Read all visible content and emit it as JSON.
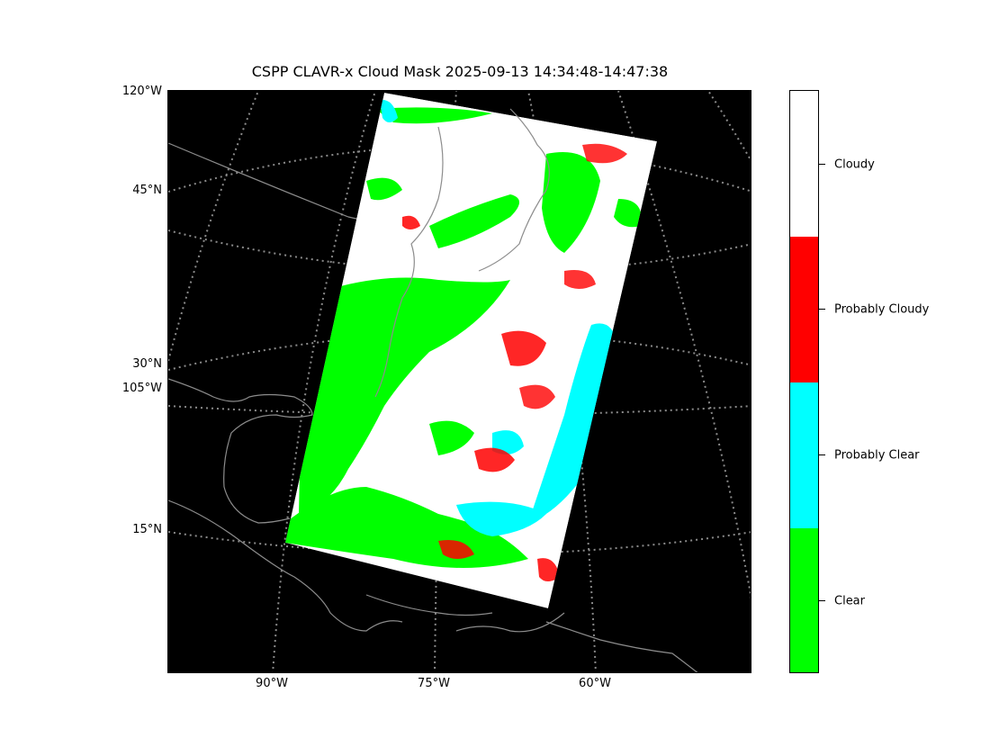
{
  "title": "CSPP CLAVR-x Cloud Mask 2025-09-13 14:34:48-14:47:38",
  "lat_labels": [
    "120°W",
    "45°N",
    "30°N",
    "105°W",
    "15°N"
  ],
  "lon_labels": [
    "90°W",
    "75°W",
    "60°W"
  ],
  "colorbar": {
    "classes": [
      {
        "label": "Cloudy",
        "color": "#ffffff"
      },
      {
        "label": "Probably Cloudy",
        "color": "#ff0000"
      },
      {
        "label": "Probably Clear",
        "color": "#00ffff"
      },
      {
        "label": "Clear",
        "color": "#00ff00"
      }
    ]
  },
  "colors": {
    "background": "#000000",
    "coastline": "#808080",
    "gridline": "#808080"
  }
}
